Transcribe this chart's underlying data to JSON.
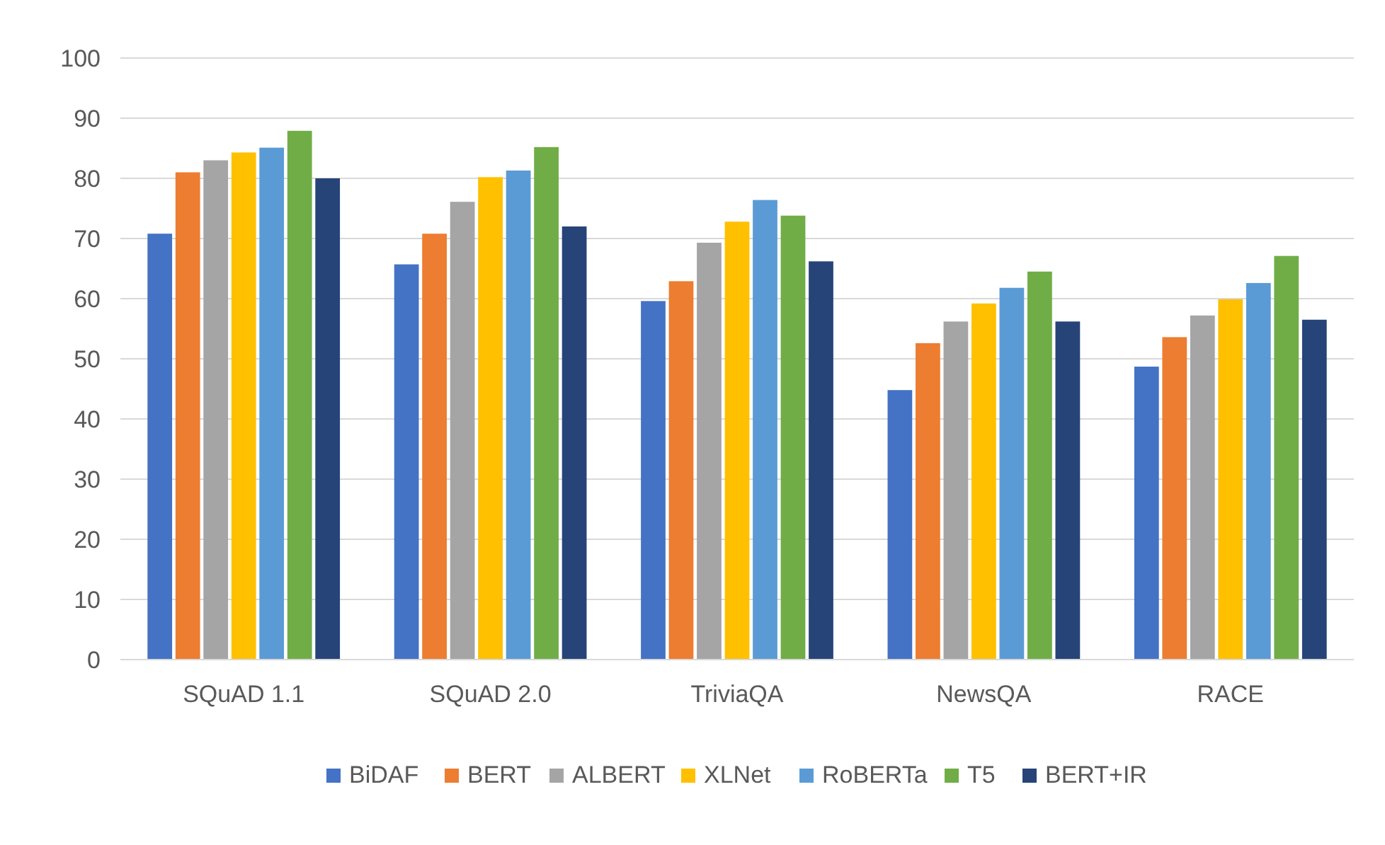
{
  "chart_data": {
    "type": "bar",
    "categories": [
      "SQuAD 1.1",
      "SQuAD 2.0",
      "TriviaQA",
      "NewsQA",
      "RACE"
    ],
    "series": [
      {
        "name": "BiDAF",
        "color": "#4472c4",
        "values": [
          70.8,
          65.7,
          59.6,
          44.8,
          48.7
        ]
      },
      {
        "name": "BERT",
        "color": "#ed7d31",
        "values": [
          81,
          70.8,
          62.9,
          52.6,
          53.6
        ]
      },
      {
        "name": "ALBERT",
        "color": "#a5a5a5",
        "values": [
          83,
          76.1,
          69.3,
          56.2,
          57.2
        ]
      },
      {
        "name": "XLNet",
        "color": "#ffc000",
        "values": [
          84.3,
          80.2,
          72.8,
          59.2,
          59.9
        ]
      },
      {
        "name": "RoBERTa",
        "color": "#5b9bd5",
        "values": [
          85.1,
          81.3,
          76.4,
          61.8,
          62.6
        ]
      },
      {
        "name": "T5",
        "color": "#70ad47",
        "values": [
          87.9,
          85.2,
          73.8,
          64.5,
          67.1
        ]
      },
      {
        "name": "BERT+IR",
        "color": "#264478",
        "values": [
          80,
          72,
          66.2,
          56.2,
          56.5
        ]
      }
    ],
    "ylim": [
      0,
      100
    ],
    "yticks": [
      0,
      10,
      20,
      30,
      40,
      50,
      60,
      70,
      80,
      90,
      100
    ],
    "grid": "y",
    "legend": "bottom"
  }
}
